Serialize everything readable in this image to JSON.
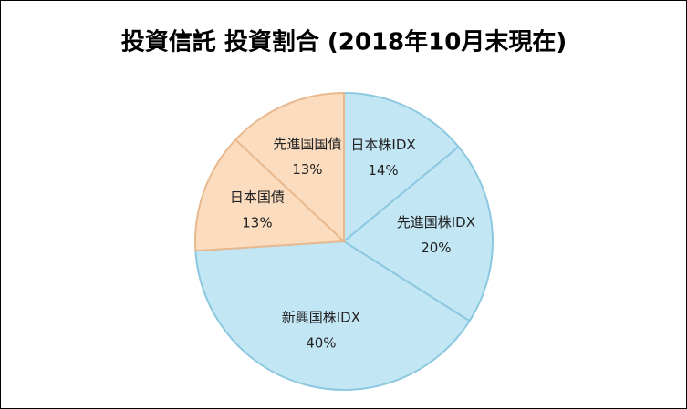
{
  "chart_data": {
    "type": "pie",
    "title": "投資信託 投資割合 (2018年10月末現在)",
    "categories": [
      "日本株IDX",
      "先進国株IDX",
      "新興国株IDX",
      "日本国債",
      "先進国国債"
    ],
    "values": [
      14,
      20,
      40,
      13,
      13
    ],
    "value_labels": [
      "14%",
      "20%",
      "40%",
      "13%",
      "13%"
    ],
    "colors": [
      "#c3e6f4",
      "#c3e6f4",
      "#c3e6f4",
      "#fbdcbf",
      "#fbdcbf"
    ]
  }
}
